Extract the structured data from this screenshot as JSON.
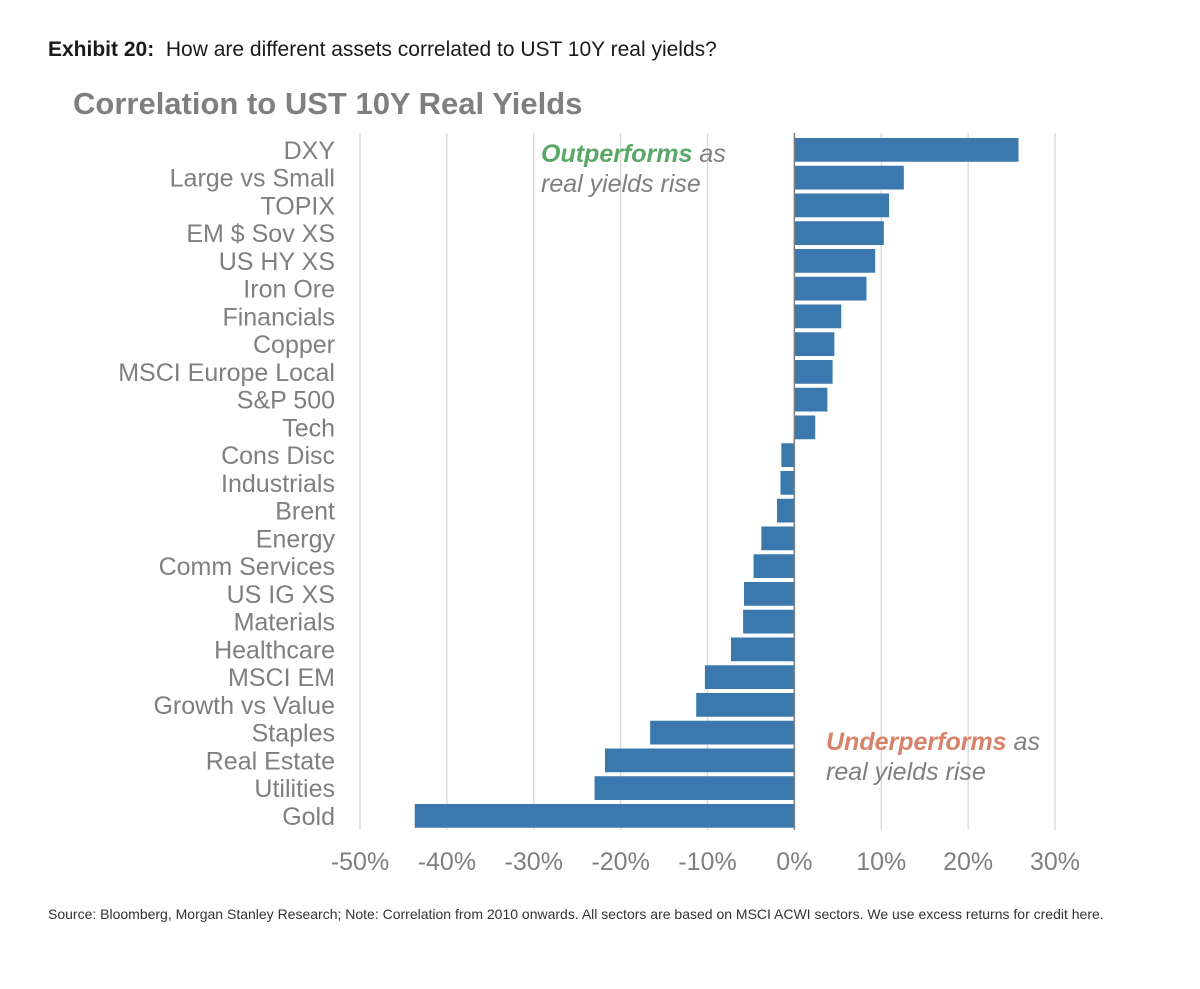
{
  "exhibit": {
    "label": "Exhibit 20:",
    "question": "How are different assets correlated to UST 10Y real yields?"
  },
  "annotations": {
    "outperforms": {
      "highlight": "Outperforms",
      "rest1": " as",
      "line2": "real yields rise"
    },
    "underperforms": {
      "highlight": "Underperforms",
      "rest1": " as",
      "line2": "real yields rise"
    }
  },
  "source": "Source: Bloomberg, Morgan Stanley Research; Note: Correlation from 2010 onwards. All sectors are based on MSCI ACWI sectors. We use excess returns for credit here.",
  "colors": {
    "bar": "#3a78ae",
    "grid": "#d9d9d9",
    "axis": "#7f7f7f",
    "positive_note": "#5aa866",
    "negative_note": "#d9826a"
  },
  "chart_data": {
    "type": "bar",
    "orientation": "horizontal",
    "title": "Correlation to UST 10Y Real Yields",
    "categories": [
      "DXY",
      "Large vs Small",
      "TOPIX",
      "EM $ Sov XS",
      "US HY XS",
      "Iron Ore",
      "Financials",
      "Copper",
      "MSCI Europe Local",
      "S&P 500",
      "Tech",
      "Cons Disc",
      "Industrials",
      "Brent",
      "Energy",
      "Comm Services",
      "US IG XS",
      "Materials",
      "Healthcare",
      "MSCI EM",
      "Growth vs Value",
      "Staples",
      "Real Estate",
      "Utilities",
      "Gold"
    ],
    "values": [
      25.8,
      12.6,
      10.9,
      10.3,
      9.3,
      8.3,
      5.4,
      4.6,
      4.4,
      3.8,
      2.4,
      -1.5,
      -1.6,
      -2.0,
      -3.8,
      -4.7,
      -5.8,
      -5.9,
      -7.3,
      -10.3,
      -11.3,
      -16.6,
      -21.8,
      -23.0,
      -43.7
    ],
    "xlim": [
      -50,
      30
    ],
    "xticks": [
      -50,
      -40,
      -30,
      -20,
      -10,
      0,
      10,
      20,
      30
    ],
    "xtick_labels": [
      "-50%",
      "-40%",
      "-30%",
      "-20%",
      "-10%",
      "0%",
      "10%",
      "20%",
      "30%"
    ],
    "grid": true,
    "legend": "none"
  }
}
